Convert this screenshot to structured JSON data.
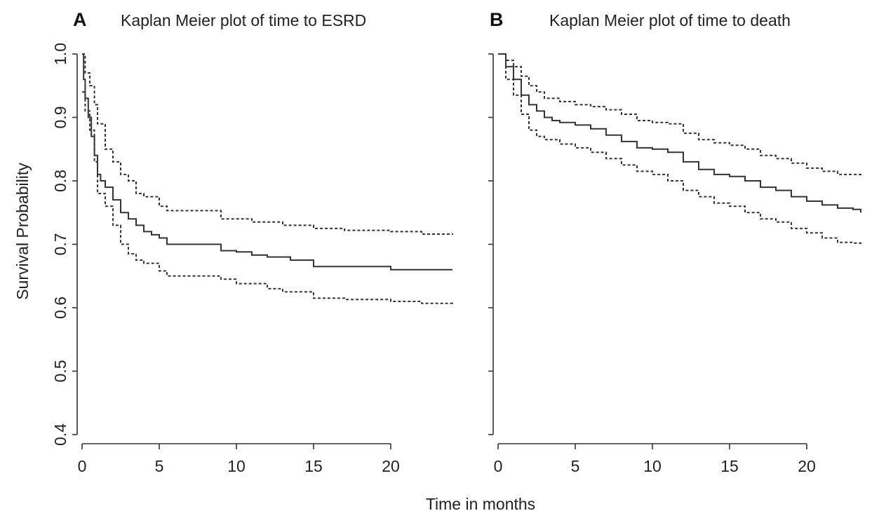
{
  "chart_data": [
    {
      "type": "line",
      "panel_letter": "A",
      "title": "Kaplan Meier plot of time to ESRD",
      "xlabel": "Time in months",
      "ylabel": "Survival Probability",
      "xlim": [
        0,
        24
      ],
      "ylim": [
        0.4,
        1.0
      ],
      "x_ticks": [
        0,
        5,
        10,
        15,
        20
      ],
      "y_ticks": [
        0.4,
        0.5,
        0.6,
        0.7,
        0.8,
        0.9,
        1.0
      ],
      "y_tick_labels": [
        "0.4",
        "0.5",
        "0.6",
        "0.7",
        "0.8",
        "0.9",
        "1.0"
      ],
      "grid": false,
      "series": [
        {
          "role": "estimate",
          "x": [
            0,
            0.1,
            0.2,
            0.4,
            0.6,
            0.8,
            1.0,
            1.2,
            1.5,
            2.0,
            2.5,
            3.0,
            3.5,
            4.0,
            4.5,
            5.0,
            5.5,
            6.5,
            8.0,
            9.0,
            10.0,
            11.0,
            12.0,
            13.5,
            15.0,
            17.0,
            19.0,
            20.0,
            22.0,
            24.0
          ],
          "y": [
            1.0,
            0.96,
            0.93,
            0.9,
            0.87,
            0.84,
            0.81,
            0.8,
            0.79,
            0.77,
            0.75,
            0.74,
            0.73,
            0.72,
            0.715,
            0.71,
            0.7,
            0.7,
            0.7,
            0.69,
            0.688,
            0.683,
            0.68,
            0.675,
            0.665,
            0.665,
            0.665,
            0.66,
            0.66,
            0.66
          ]
        },
        {
          "role": "upper-ci",
          "x": [
            0,
            0.2,
            0.5,
            0.8,
            1.0,
            1.5,
            2.0,
            2.5,
            3.0,
            3.5,
            4.0,
            5.0,
            5.5,
            7.0,
            9.0,
            11.0,
            13.0,
            15.0,
            17.0,
            20.0,
            22.0,
            24.0
          ],
          "y": [
            1.0,
            0.97,
            0.95,
            0.92,
            0.89,
            0.85,
            0.83,
            0.81,
            0.8,
            0.78,
            0.775,
            0.76,
            0.753,
            0.753,
            0.74,
            0.735,
            0.73,
            0.725,
            0.722,
            0.72,
            0.716,
            0.715
          ]
        },
        {
          "role": "lower-ci",
          "x": [
            0,
            0.2,
            0.5,
            0.8,
            1.0,
            1.5,
            2.0,
            2.5,
            3.0,
            3.5,
            4.0,
            5.0,
            5.5,
            7.0,
            9.0,
            10.0,
            12.0,
            13.0,
            15.0,
            17.0,
            20.0,
            22.0,
            24.0
          ],
          "y": [
            0.94,
            0.91,
            0.88,
            0.83,
            0.78,
            0.76,
            0.73,
            0.7,
            0.685,
            0.675,
            0.67,
            0.658,
            0.65,
            0.65,
            0.645,
            0.638,
            0.63,
            0.625,
            0.615,
            0.613,
            0.61,
            0.607,
            0.605
          ]
        }
      ]
    },
    {
      "type": "line",
      "panel_letter": "B",
      "title": "Kaplan Meier plot of time to death",
      "xlabel": "Time in months",
      "ylabel": "",
      "xlim": [
        0,
        24
      ],
      "ylim": [
        0.4,
        1.0
      ],
      "x_ticks": [
        0,
        5,
        10,
        15,
        20
      ],
      "y_ticks": [
        0.4,
        0.5,
        0.6,
        0.7,
        0.8,
        0.9,
        1.0
      ],
      "y_tick_labels": [],
      "grid": false,
      "series": [
        {
          "role": "estimate",
          "x": [
            0,
            0.5,
            1.0,
            1.5,
            2.0,
            2.5,
            3.0,
            3.5,
            4.0,
            5.0,
            6.0,
            7.0,
            8.0,
            9.0,
            10.0,
            11.0,
            12.0,
            13.0,
            14.0,
            15.0,
            16.0,
            17.0,
            18.0,
            19.0,
            20.0,
            21.0,
            22.0,
            23.0,
            23.5
          ],
          "y": [
            1.0,
            0.98,
            0.96,
            0.935,
            0.92,
            0.91,
            0.9,
            0.895,
            0.892,
            0.888,
            0.882,
            0.872,
            0.862,
            0.852,
            0.85,
            0.845,
            0.83,
            0.818,
            0.81,
            0.807,
            0.8,
            0.79,
            0.785,
            0.775,
            0.768,
            0.762,
            0.757,
            0.755,
            0.75
          ]
        },
        {
          "role": "upper-ci",
          "x": [
            0,
            0.5,
            1.0,
            1.5,
            2.0,
            2.5,
            3.0,
            4.0,
            5.0,
            6.0,
            7.0,
            8.0,
            9.0,
            10.0,
            11.0,
            12.0,
            13.0,
            14.0,
            15.0,
            16.0,
            17.0,
            18.0,
            19.0,
            20.0,
            21.0,
            22.0,
            23.0,
            23.5
          ],
          "y": [
            1.0,
            0.99,
            0.98,
            0.965,
            0.95,
            0.94,
            0.93,
            0.925,
            0.92,
            0.917,
            0.912,
            0.905,
            0.895,
            0.892,
            0.89,
            0.875,
            0.865,
            0.86,
            0.856,
            0.85,
            0.84,
            0.835,
            0.828,
            0.82,
            0.815,
            0.81,
            0.81,
            0.808
          ]
        },
        {
          "role": "lower-ci",
          "x": [
            0,
            0.5,
            1.0,
            1.5,
            2.0,
            2.5,
            3.0,
            4.0,
            5.0,
            6.0,
            7.0,
            8.0,
            9.0,
            10.0,
            11.0,
            12.0,
            13.0,
            14.0,
            15.0,
            16.0,
            17.0,
            18.0,
            19.0,
            20.0,
            21.0,
            22.0,
            23.0,
            23.5
          ],
          "y": [
            1.0,
            0.96,
            0.935,
            0.905,
            0.88,
            0.87,
            0.865,
            0.858,
            0.852,
            0.845,
            0.835,
            0.825,
            0.815,
            0.81,
            0.8,
            0.785,
            0.775,
            0.765,
            0.76,
            0.75,
            0.74,
            0.735,
            0.725,
            0.718,
            0.71,
            0.703,
            0.702,
            0.7
          ]
        }
      ]
    }
  ]
}
